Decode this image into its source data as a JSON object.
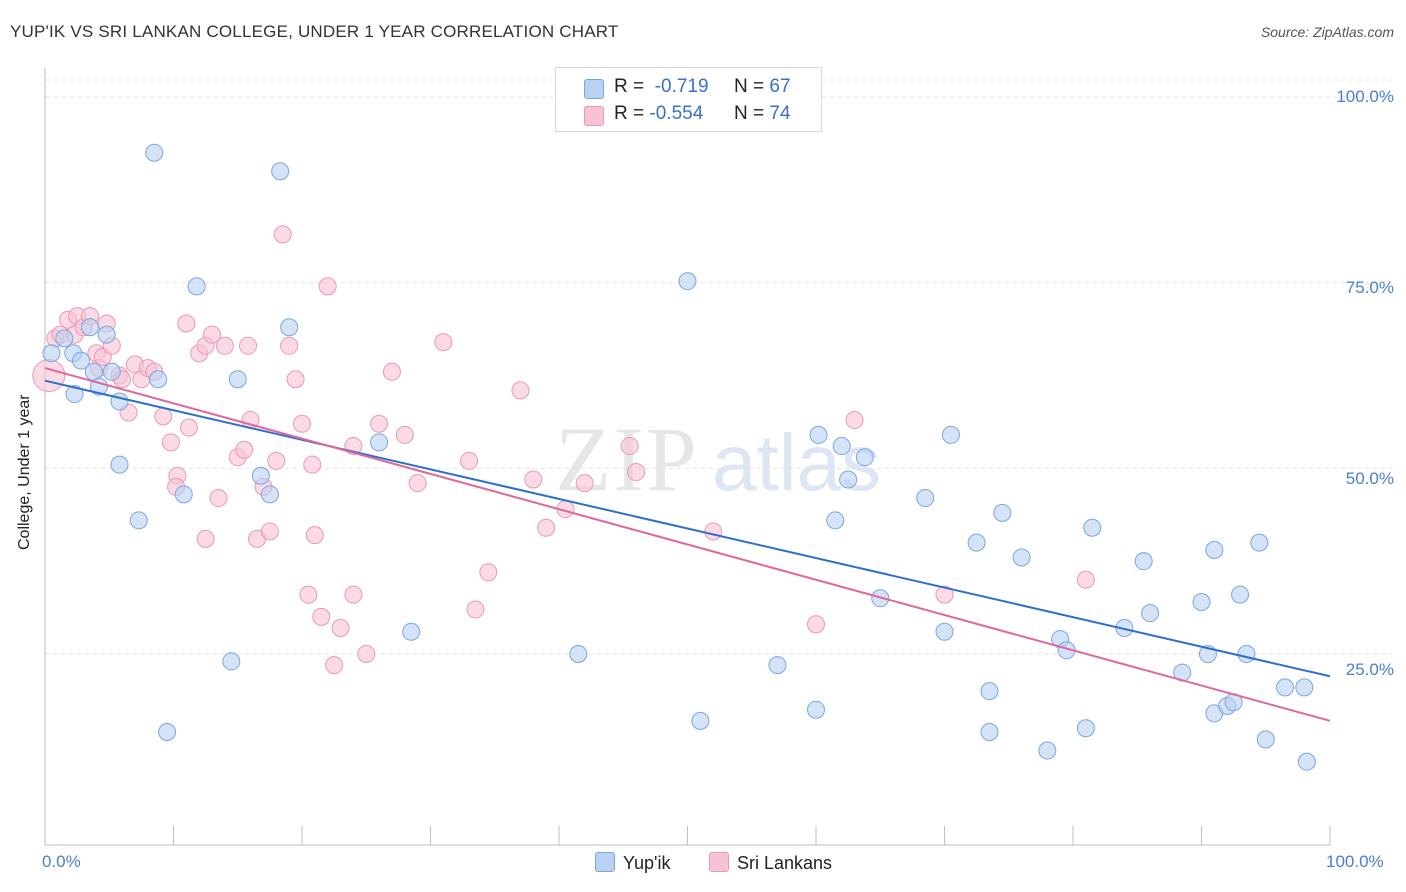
{
  "title": "YUP'IK VS SRI LANKAN COLLEGE, UNDER 1 YEAR CORRELATION CHART",
  "source": "Source: ZipAtlas.com",
  "watermark": "ZIPatlas",
  "colors": {
    "blue_fill": "#b9d1f2",
    "blue_stroke": "#7aa6e0",
    "blue_line": "#2d6fce",
    "pink_fill": "#f7c3d3",
    "pink_stroke": "#ec98b4",
    "pink_line": "#e0679a",
    "grid": "#e3e3e3",
    "axis_text": "#4a7fd4"
  },
  "legend": {
    "rows": [
      {
        "r_label": "R =",
        "r_value": "-0.719",
        "n_label": "N =",
        "n_value": "67"
      },
      {
        "r_label": "R =",
        "r_value": "-0.554",
        "n_label": "N =",
        "n_value": "74"
      }
    ]
  },
  "bottom_legend": {
    "series1": "Yup'ik",
    "series2": "Sri Lankans"
  },
  "chart_data": {
    "type": "scatter",
    "title": "YUP'IK VS SRI LANKAN COLLEGE, UNDER 1 YEAR CORRELATION CHART",
    "xlabel": "",
    "ylabel": "College, Under 1 year",
    "xlim": [
      0,
      100
    ],
    "ylim": [
      0,
      105
    ],
    "x_tick_labels": [
      "0.0%",
      "100.0%"
    ],
    "y_tick_labels": [
      "100.0%",
      "75.0%",
      "50.0%",
      "25.0%"
    ],
    "y_ticks": [
      100,
      75,
      50,
      25
    ],
    "series": [
      {
        "name": "Yup'ik",
        "r": -0.719,
        "n": 67,
        "trend": {
          "x": [
            0,
            100
          ],
          "y": [
            61.8,
            22.0
          ]
        },
        "points": [
          [
            0.5,
            65.5
          ],
          [
            1.5,
            67.5
          ],
          [
            2.2,
            65.5
          ],
          [
            2.3,
            60
          ],
          [
            2.8,
            64.5
          ],
          [
            3.5,
            69
          ],
          [
            3.8,
            63
          ],
          [
            4.2,
            61
          ],
          [
            4.8,
            68
          ],
          [
            5.2,
            63
          ],
          [
            5.8,
            59
          ],
          [
            5.8,
            50.5
          ],
          [
            7.3,
            43
          ],
          [
            8.5,
            92.5
          ],
          [
            8.8,
            62
          ],
          [
            9.5,
            14.5
          ],
          [
            10.8,
            46.5
          ],
          [
            11.8,
            74.5
          ],
          [
            14.5,
            24
          ],
          [
            15,
            62
          ],
          [
            16.8,
            49
          ],
          [
            17.5,
            46.5
          ],
          [
            18.3,
            90
          ],
          [
            19,
            69
          ],
          [
            26,
            53.5
          ],
          [
            28.5,
            28
          ],
          [
            41.5,
            25
          ],
          [
            50,
            75.2
          ],
          [
            51,
            16
          ],
          [
            57,
            23.5
          ],
          [
            60,
            17.5
          ],
          [
            60.2,
            54.5
          ],
          [
            61.5,
            43
          ],
          [
            62,
            53
          ],
          [
            62.5,
            48.5
          ],
          [
            63.8,
            51.5
          ],
          [
            65,
            32.5
          ],
          [
            68.5,
            46
          ],
          [
            70,
            28
          ],
          [
            70.5,
            54.5
          ],
          [
            72.5,
            40
          ],
          [
            73.5,
            20
          ],
          [
            73.5,
            14.5
          ],
          [
            74.5,
            44
          ],
          [
            76,
            38
          ],
          [
            78,
            12
          ],
          [
            79,
            27
          ],
          [
            79.5,
            25.5
          ],
          [
            81,
            15
          ],
          [
            81.5,
            42
          ],
          [
            84,
            28.5
          ],
          [
            85.5,
            37.5
          ],
          [
            86,
            30.5
          ],
          [
            88.5,
            22.5
          ],
          [
            90,
            32
          ],
          [
            90.5,
            25
          ],
          [
            91,
            17
          ],
          [
            91,
            39
          ],
          [
            92,
            18
          ],
          [
            92.5,
            18.5
          ],
          [
            93,
            33
          ],
          [
            93.5,
            25
          ],
          [
            94.5,
            40
          ],
          [
            95,
            13.5
          ],
          [
            96.5,
            20.5
          ],
          [
            98,
            20.5
          ],
          [
            98.2,
            10.5
          ]
        ]
      },
      {
        "name": "Sri Lankans",
        "r": -0.554,
        "n": 74,
        "trend": {
          "x": [
            0,
            100
          ],
          "y": [
            63.5,
            16.0
          ]
        },
        "points": [
          [
            0.3,
            62.5
          ],
          [
            0.8,
            67.5
          ],
          [
            1.2,
            68
          ],
          [
            1.8,
            70
          ],
          [
            2.3,
            68
          ],
          [
            2.5,
            70.5
          ],
          [
            3,
            69
          ],
          [
            3.5,
            70.5
          ],
          [
            4,
            65.5
          ],
          [
            4.2,
            63.5
          ],
          [
            4.5,
            65
          ],
          [
            4.8,
            69.5
          ],
          [
            5.2,
            66.5
          ],
          [
            5.8,
            62.5
          ],
          [
            6,
            62
          ],
          [
            6.5,
            57.5
          ],
          [
            7,
            64
          ],
          [
            7.5,
            62
          ],
          [
            8,
            63.5
          ],
          [
            8.5,
            63
          ],
          [
            9.2,
            57
          ],
          [
            9.8,
            53.5
          ],
          [
            10.3,
            49
          ],
          [
            10.2,
            47.5
          ],
          [
            11,
            69.5
          ],
          [
            11.2,
            55.5
          ],
          [
            12,
            65.5
          ],
          [
            12.5,
            40.5
          ],
          [
            12.5,
            66.5
          ],
          [
            13,
            68
          ],
          [
            13.5,
            46
          ],
          [
            14,
            66.5
          ],
          [
            15,
            51.5
          ],
          [
            15.5,
            52.5
          ],
          [
            15.8,
            66.5
          ],
          [
            16,
            56.5
          ],
          [
            16.5,
            40.5
          ],
          [
            17,
            47.5
          ],
          [
            17.5,
            41.5
          ],
          [
            18,
            51
          ],
          [
            18.5,
            81.5
          ],
          [
            19,
            66.5
          ],
          [
            19.5,
            62
          ],
          [
            20,
            56
          ],
          [
            20.5,
            33
          ],
          [
            20.8,
            50.5
          ],
          [
            21,
            41
          ],
          [
            21.5,
            30
          ],
          [
            22,
            74.5
          ],
          [
            22.5,
            23.5
          ],
          [
            23,
            28.5
          ],
          [
            24,
            33
          ],
          [
            24,
            53
          ],
          [
            25,
            25
          ],
          [
            26,
            56
          ],
          [
            27,
            63
          ],
          [
            28,
            54.5
          ],
          [
            29,
            48
          ],
          [
            31,
            67
          ],
          [
            33,
            51
          ],
          [
            33.5,
            31
          ],
          [
            34.5,
            36
          ],
          [
            37,
            60.5
          ],
          [
            38,
            48.5
          ],
          [
            39,
            42
          ],
          [
            40.5,
            44.5
          ],
          [
            42,
            48
          ],
          [
            45.5,
            53
          ],
          [
            46,
            49.5
          ],
          [
            52,
            41.5
          ],
          [
            60,
            29
          ],
          [
            63,
            56.5
          ],
          [
            70,
            33
          ],
          [
            81,
            35
          ]
        ]
      }
    ]
  }
}
